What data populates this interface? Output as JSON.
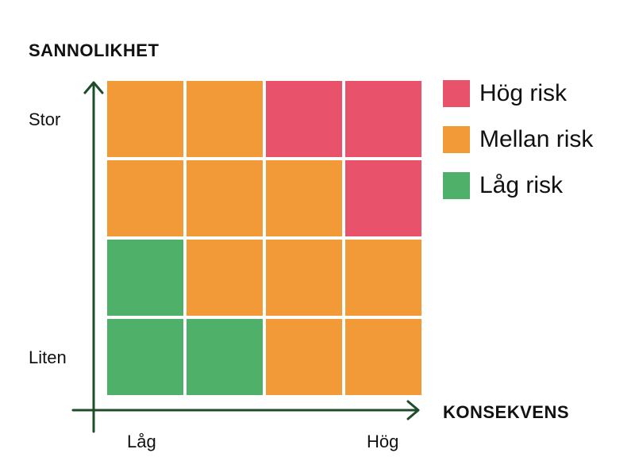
{
  "chart_data": {
    "type": "heatmap",
    "ylabel": "SANNOLIKHET",
    "xlabel": "KONSEKVENS",
    "y_ticks": [
      {
        "label": "Stor",
        "row": 0
      },
      {
        "label": "Liten",
        "row": 3
      }
    ],
    "x_ticks": [
      {
        "label": "Låg",
        "col": 0
      },
      {
        "label": "Hög",
        "col": 3
      }
    ],
    "rows_top_to_bottom": [
      [
        "medium",
        "medium",
        "high",
        "high"
      ],
      [
        "medium",
        "medium",
        "medium",
        "high"
      ],
      [
        "low",
        "medium",
        "medium",
        "medium"
      ],
      [
        "low",
        "low",
        "medium",
        "medium"
      ]
    ],
    "legend": [
      {
        "key": "high",
        "label": "Hög risk",
        "color": "#e8526a"
      },
      {
        "key": "medium",
        "label": "Mellan risk",
        "color": "#f29a38"
      },
      {
        "key": "low",
        "label": "Låg risk",
        "color": "#4fb069"
      }
    ],
    "axis_color": "#1e4d2b",
    "legend_placement": "right"
  }
}
